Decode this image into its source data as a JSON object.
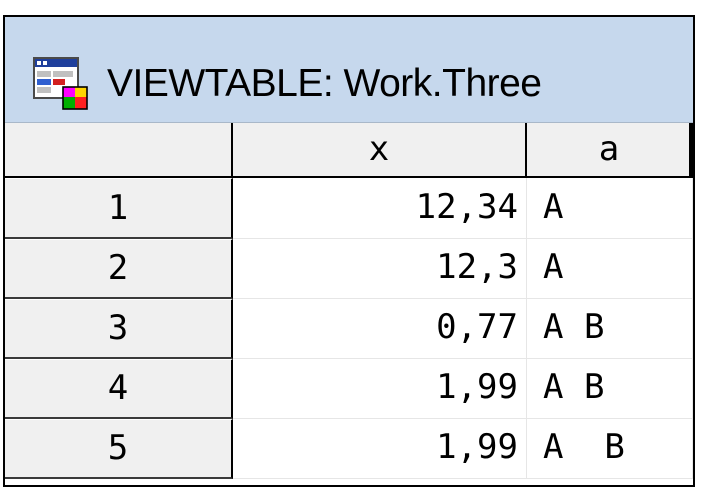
{
  "window": {
    "title": "VIEWTABLE: Work.Three",
    "icon": "sas-viewtable-icon"
  },
  "table": {
    "columns": [
      "x",
      "a"
    ],
    "rows": [
      {
        "num": "1",
        "x": "12,34",
        "a": "A"
      },
      {
        "num": "2",
        "x": "12,3",
        "a": "A"
      },
      {
        "num": "3",
        "x": "0,77",
        "a": "A B"
      },
      {
        "num": "4",
        "x": "1,99",
        "a": "A B"
      },
      {
        "num": "5",
        "x": "1,99",
        "a": "A  B"
      }
    ]
  },
  "colors": {
    "titlebar": "#c6d8ed",
    "header_bg": "#f0f0f0",
    "frame": "#000000"
  }
}
